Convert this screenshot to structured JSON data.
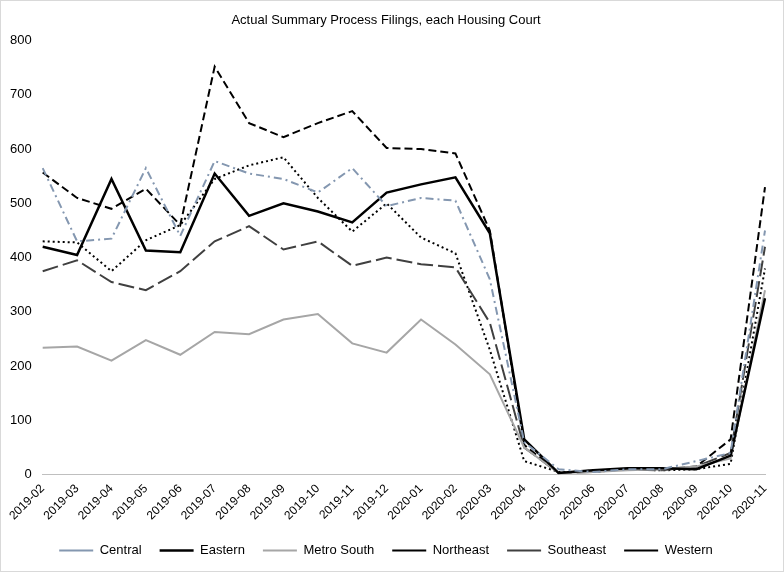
{
  "chart_data": {
    "type": "line",
    "title": "Actual Summary Process Filings, each Housing Court",
    "categories": [
      "2019-02",
      "2019-03",
      "2019-04",
      "2019-05",
      "2019-06",
      "2019-07",
      "2019-08",
      "2019-09",
      "2019-10",
      "2019-11",
      "2019-12",
      "2020-01",
      "2020-02",
      "2020-03",
      "2020-04",
      "2020-05",
      "2020-06",
      "2020-07",
      "2020-08",
      "2020-09",
      "2020-10",
      "2020-11"
    ],
    "series": [
      {
        "name": "Central",
        "color": "#8497b0",
        "line_style": "dashdot",
        "values": [
          565,
          430,
          435,
          565,
          440,
          578,
          555,
          545,
          520,
          565,
          495,
          510,
          505,
          360,
          60,
          10,
          5,
          10,
          10,
          25,
          40,
          450
        ]
      },
      {
        "name": "Eastern",
        "color": "#000000",
        "line_style": "solid",
        "values": [
          420,
          405,
          545,
          413,
          410,
          555,
          477,
          500,
          485,
          465,
          520,
          535,
          548,
          445,
          65,
          3,
          8,
          12,
          12,
          10,
          35,
          325
        ]
      },
      {
        "name": "Metro South",
        "color": "#a6a6a6",
        "line_style": "solid",
        "values": [
          234,
          236,
          210,
          248,
          221,
          263,
          259,
          286,
          296,
          242,
          225,
          286,
          240,
          185,
          50,
          3,
          5,
          8,
          10,
          15,
          30,
          340
        ]
      },
      {
        "name": "Northeast",
        "color": "#000000",
        "line_style": "dashed",
        "values": [
          557,
          510,
          490,
          527,
          460,
          752,
          648,
          622,
          648,
          670,
          602,
          600,
          592,
          450,
          55,
          3,
          8,
          10,
          10,
          15,
          65,
          530
        ]
      },
      {
        "name": "Southeast",
        "color": "#404040",
        "line_style": "longdash",
        "values": [
          375,
          395,
          355,
          340,
          375,
          430,
          458,
          415,
          430,
          385,
          400,
          388,
          382,
          280,
          50,
          3,
          5,
          10,
          8,
          15,
          40,
          420
        ]
      },
      {
        "name": "Western",
        "color": "#000000",
        "line_style": "dotted",
        "values": [
          430,
          428,
          375,
          432,
          460,
          545,
          570,
          585,
          510,
          448,
          500,
          437,
          408,
          230,
          25,
          5,
          5,
          10,
          8,
          10,
          20,
          380
        ]
      }
    ],
    "ylim": [
      0,
      800
    ],
    "yticks": [
      0,
      100,
      200,
      300,
      400,
      500,
      600,
      700,
      800
    ],
    "grid": false,
    "legend": "bottom"
  }
}
